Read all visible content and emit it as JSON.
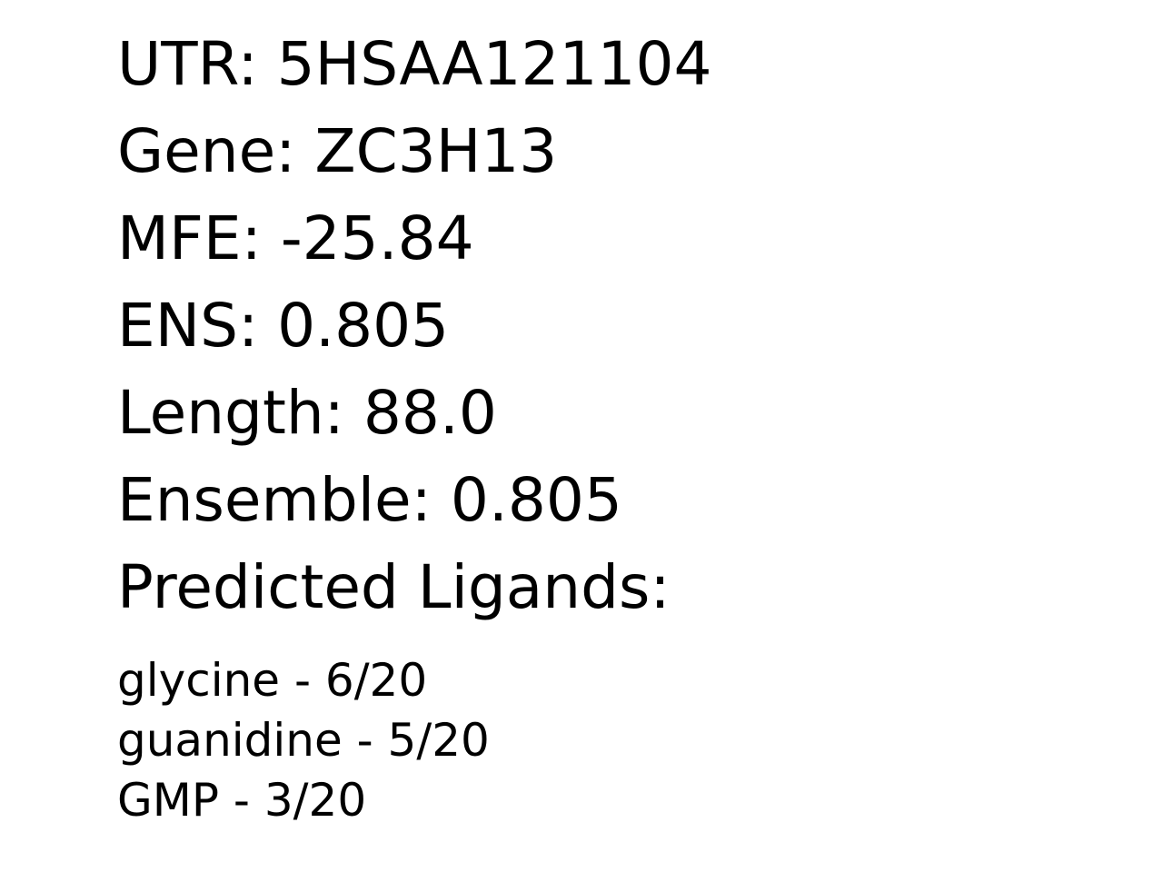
{
  "fields": {
    "utr": "UTR: 5HSAA121104",
    "gene": "Gene: ZC3H13",
    "mfe": "MFE: -25.84",
    "ens": "ENS: 0.805",
    "length": "Length: 88.0",
    "ensemble": "Ensemble: 0.805",
    "predicted_ligands_heading": "Predicted Ligands:"
  },
  "ligands": [
    "glycine - 6/20",
    "guanidine - 5/20",
    "GMP - 3/20"
  ]
}
